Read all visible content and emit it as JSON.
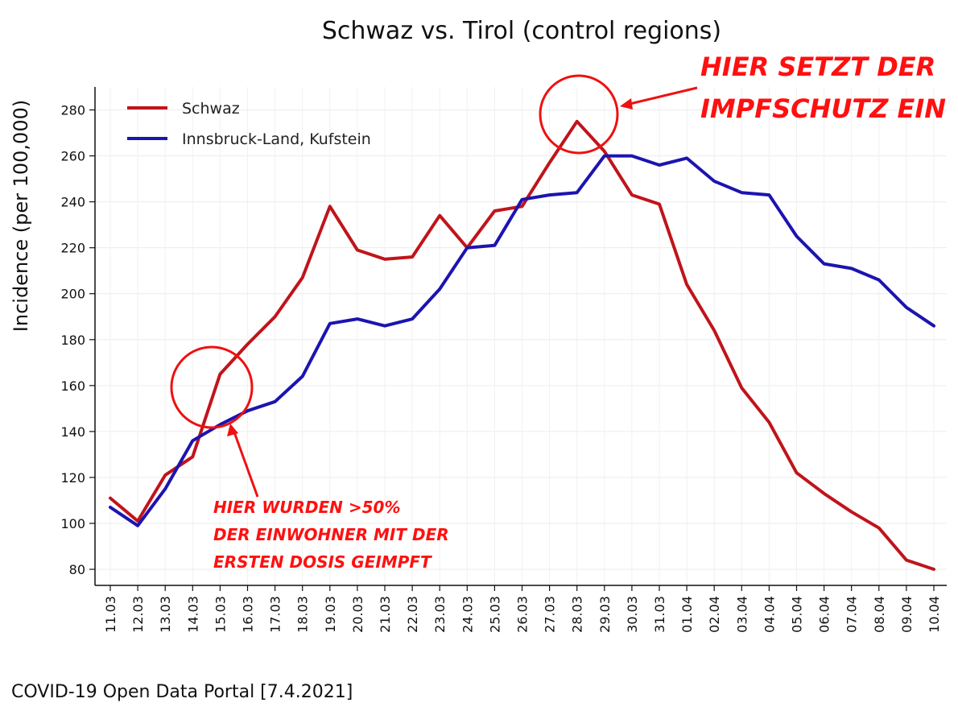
{
  "chart_data": {
    "type": "line",
    "title": "Schwaz vs. Tirol (control regions)",
    "ylabel": "Incidence (per 100,000)",
    "xlabel": "",
    "ylim": [
      73,
      290
    ],
    "yticks": [
      80,
      100,
      120,
      140,
      160,
      180,
      200,
      220,
      240,
      260,
      280
    ],
    "grid": true,
    "legend_position": "top-left",
    "categories": [
      "11.03",
      "12.03",
      "13.03",
      "14.03",
      "15.03",
      "16.03",
      "17.03",
      "18.03",
      "19.03",
      "20.03",
      "21.03",
      "22.03",
      "23.03",
      "24.03",
      "25.03",
      "26.03",
      "27.03",
      "28.03",
      "29.03",
      "30.03",
      "31.03",
      "01.04",
      "02.04",
      "03.04",
      "04.04",
      "05.04",
      "06.04",
      "07.04",
      "08.04",
      "09.04",
      "10.04"
    ],
    "series": [
      {
        "name": "Schwaz",
        "color": "#c0141b",
        "values": [
          111,
          101,
          121,
          129,
          165,
          178,
          190,
          207,
          238,
          219,
          215,
          216,
          234,
          220,
          236,
          238,
          257,
          275,
          262,
          243,
          239,
          204,
          184,
          159,
          144,
          122,
          113,
          105,
          98,
          84,
          80
        ]
      },
      {
        "name": "Innsbruck-Land, Kufstein",
        "color": "#1c14b0",
        "values": [
          107,
          99,
          115,
          136,
          143,
          149,
          153,
          164,
          187,
          189,
          186,
          189,
          202,
          220,
          221,
          241,
          243,
          244,
          260,
          260,
          256,
          259,
          249,
          244,
          243,
          225,
          213,
          211,
          206,
          194,
          186
        ]
      }
    ],
    "annotations": [
      {
        "lines": [
          "HIER SETZT DER",
          "IMPFSCHUTZ EIN"
        ],
        "circle_at": {
          "x": "28.03",
          "y": 275
        }
      },
      {
        "lines": [
          "HIER WURDEN >50%",
          "DER EINWOHNER MIT DER",
          "ERSTEN DOSIS GEIMPFT"
        ],
        "circle_at": {
          "x": "15.03",
          "y": 157
        }
      }
    ],
    "source": "COVID-19 Open Data Portal [7.4.2021]"
  }
}
